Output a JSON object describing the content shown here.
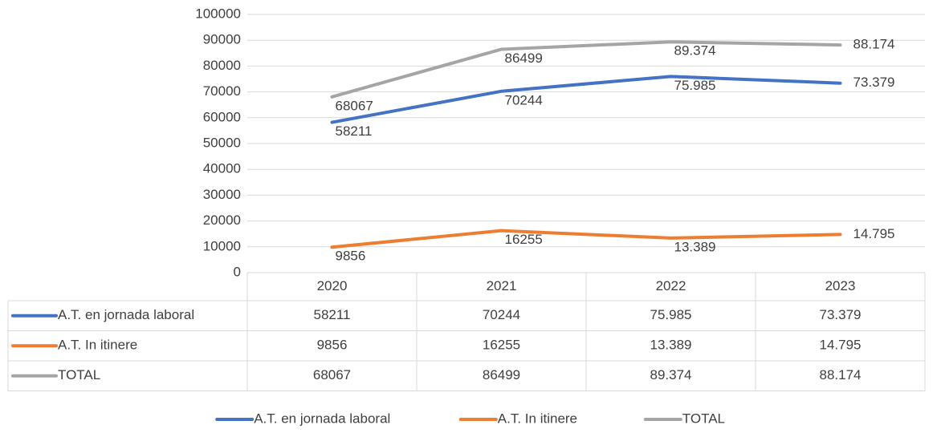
{
  "chart_data": {
    "type": "line",
    "categories": [
      "2020",
      "2021",
      "2022",
      "2023"
    ],
    "series": [
      {
        "name": "A.T. en jornada laboral",
        "color": "#4472c4",
        "values": [
          58211,
          70244,
          75985,
          73379
        ],
        "value_labels": [
          "58211",
          "70244",
          "75.985",
          "73.379"
        ]
      },
      {
        "name": "A.T. In itinere",
        "color": "#ed7d31",
        "values": [
          9856,
          16255,
          13389,
          14795
        ],
        "value_labels": [
          "9856",
          "16255",
          "13.389",
          "14.795"
        ]
      },
      {
        "name": "TOTAL",
        "color": "#a5a5a5",
        "values": [
          68067,
          86499,
          89374,
          88174
        ],
        "value_labels": [
          "68067",
          "86499",
          "89.374",
          "88.174"
        ]
      }
    ],
    "ylim": [
      0,
      100000
    ],
    "yticks": [
      0,
      10000,
      20000,
      30000,
      40000,
      50000,
      60000,
      70000,
      80000,
      90000,
      100000
    ],
    "grid": true,
    "data_table": true,
    "legend": "bottom"
  }
}
